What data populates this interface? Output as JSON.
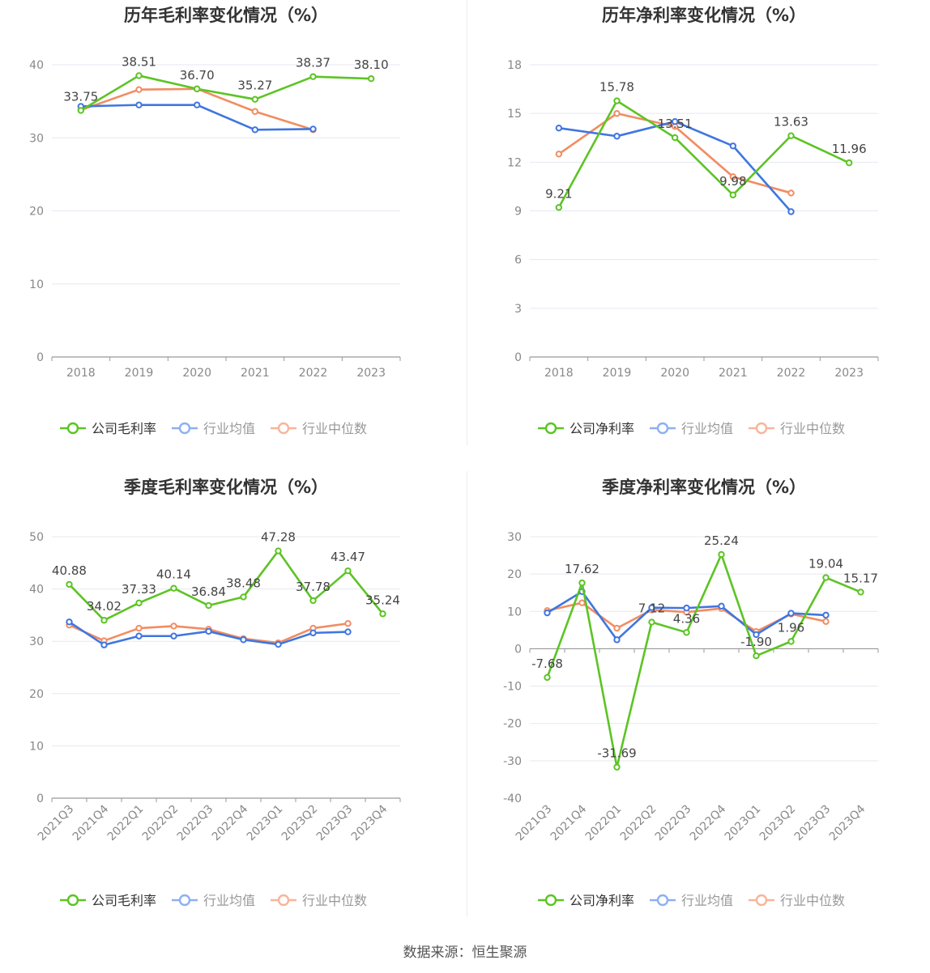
{
  "colors": {
    "company": "#5cc424",
    "avg": "#3f76e0",
    "median": "#f28c62"
  },
  "footer": "数据来源：恒生聚源",
  "chart_data": [
    {
      "type": "line",
      "title": "历年毛利率变化情况（%）",
      "categories": [
        "2018",
        "2019",
        "2020",
        "2021",
        "2022",
        "2023"
      ],
      "ylim": [
        0,
        40
      ],
      "yticks": [
        0,
        10,
        20,
        30,
        40
      ],
      "series": [
        {
          "name": "公司毛利率",
          "key": "company",
          "values": [
            33.75,
            38.51,
            36.7,
            35.27,
            38.37,
            38.1
          ],
          "labels": [
            "33.75",
            "38.51",
            "36.70",
            "35.27",
            "38.37",
            "38.10"
          ]
        },
        {
          "name": "行业均值",
          "key": "avg",
          "values": [
            34.3,
            34.5,
            34.5,
            31.1,
            31.2,
            null
          ]
        },
        {
          "name": "行业中位数",
          "key": "median",
          "values": [
            33.8,
            36.6,
            36.7,
            33.6,
            31.1,
            null
          ]
        }
      ],
      "legend": "bottom"
    },
    {
      "type": "line",
      "title": "历年净利率变化情况（%）",
      "categories": [
        "2018",
        "2019",
        "2020",
        "2021",
        "2022",
        "2023"
      ],
      "ylim": [
        0,
        18
      ],
      "yticks": [
        0,
        3,
        6,
        9,
        12,
        15,
        18
      ],
      "series": [
        {
          "name": "公司净利率",
          "key": "company",
          "values": [
            9.21,
            15.78,
            13.51,
            9.98,
            13.63,
            11.96
          ],
          "labels": [
            "9.21",
            "15.78",
            "13.51",
            "9.98",
            "13.63",
            "11.96"
          ]
        },
        {
          "name": "行业均值",
          "key": "avg",
          "values": [
            14.1,
            13.6,
            14.5,
            13.0,
            8.95,
            null
          ]
        },
        {
          "name": "行业中位数",
          "key": "median",
          "values": [
            12.5,
            15.0,
            14.2,
            11.1,
            10.1,
            null
          ]
        }
      ],
      "legend": "bottom"
    },
    {
      "type": "line",
      "title": "季度毛利率变化情况（%）",
      "categories": [
        "2021Q3",
        "2021Q4",
        "2022Q1",
        "2022Q2",
        "2022Q3",
        "2022Q4",
        "2023Q1",
        "2023Q2",
        "2023Q3",
        "2023Q4"
      ],
      "ylim": [
        0,
        50
      ],
      "yticks": [
        0,
        10,
        20,
        30,
        40,
        50
      ],
      "series": [
        {
          "name": "公司毛利率",
          "key": "company",
          "values": [
            40.88,
            34.02,
            37.33,
            40.14,
            36.84,
            38.48,
            47.28,
            37.78,
            43.47,
            35.24
          ],
          "labels": [
            "40.88",
            "34.02",
            "37.33",
            "40.14",
            "36.84",
            "38.48",
            "47.28",
            "37.78",
            "43.47",
            "35.24"
          ]
        },
        {
          "name": "行业均值",
          "key": "avg",
          "values": [
            33.7,
            29.3,
            31.0,
            31.0,
            31.9,
            30.3,
            29.4,
            31.6,
            31.8,
            null
          ]
        },
        {
          "name": "行业中位数",
          "key": "median",
          "values": [
            33.1,
            30.1,
            32.5,
            32.9,
            32.3,
            30.5,
            29.7,
            32.5,
            33.4,
            null
          ]
        }
      ],
      "legend": "bottom"
    },
    {
      "type": "line",
      "title": "季度净利率变化情况（%）",
      "categories": [
        "2021Q3",
        "2021Q4",
        "2022Q1",
        "2022Q2",
        "2022Q3",
        "2022Q4",
        "2023Q1",
        "2023Q2",
        "2023Q3",
        "2023Q4"
      ],
      "ylim": [
        -40,
        30
      ],
      "yticks": [
        -40,
        -30,
        -20,
        -10,
        0,
        10,
        20,
        30
      ],
      "series": [
        {
          "name": "公司净利率",
          "key": "company",
          "values": [
            -7.68,
            17.62,
            -31.69,
            7.12,
            4.36,
            25.24,
            -1.9,
            1.96,
            19.04,
            15.17
          ],
          "labels": [
            "-7.68",
            "17.62",
            "-31.69",
            "7.12",
            "4.36",
            "25.24",
            "-1.90",
            "1.96",
            "19.04",
            "15.17"
          ]
        },
        {
          "name": "行业均值",
          "key": "avg",
          "values": [
            9.6,
            15.3,
            2.4,
            11.0,
            10.9,
            11.4,
            3.8,
            9.5,
            9.0,
            null
          ]
        },
        {
          "name": "行业中位数",
          "key": "median",
          "values": [
            10.2,
            12.3,
            5.5,
            10.4,
            9.8,
            10.8,
            4.6,
            9.3,
            7.3,
            null
          ]
        }
      ],
      "legend": "bottom"
    }
  ]
}
